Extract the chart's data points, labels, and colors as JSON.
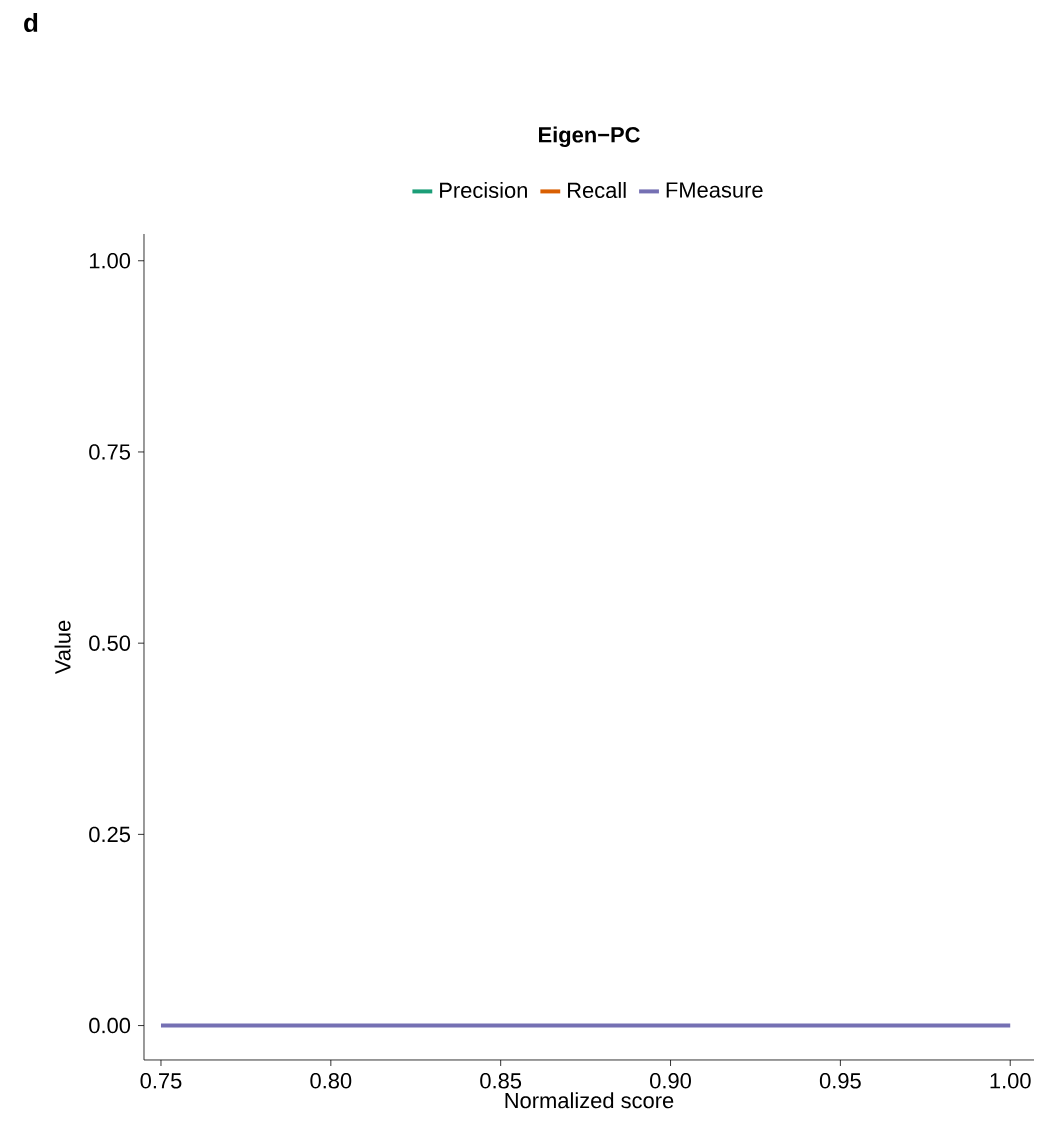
{
  "chart_data": {
    "type": "line",
    "title": "Eigen−PC",
    "xlabel": "Normalized score",
    "ylabel": "Value",
    "annotations": [
      "d"
    ],
    "x": [
      0.75,
      1.0
    ],
    "series": [
      {
        "name": "Precision",
        "color": "#1b9e77",
        "values": [
          null,
          null
        ]
      },
      {
        "name": "Recall",
        "color": "#d95f02",
        "values": [
          null,
          null
        ]
      },
      {
        "name": "FMeasure",
        "color": "#7570b3",
        "values": [
          0,
          0
        ]
      }
    ],
    "xlim": [
      0.745,
      1.007
    ],
    "ylim": [
      -0.045,
      1.035
    ],
    "xticks": [
      {
        "value": 0.75,
        "label": "0.75"
      },
      {
        "value": 0.8,
        "label": "0.80"
      },
      {
        "value": 0.85,
        "label": "0.85"
      },
      {
        "value": 0.9,
        "label": "0.90"
      },
      {
        "value": 0.95,
        "label": "0.95"
      },
      {
        "value": 1.0,
        "label": "1.00"
      }
    ],
    "yticks": [
      {
        "value": 0,
        "label": "0.00"
      },
      {
        "value": 0.25,
        "label": "0.25"
      },
      {
        "value": 0.5,
        "label": "0.50"
      },
      {
        "value": 0.75,
        "label": "0.75"
      },
      {
        "value": 1.0,
        "label": "1.00"
      }
    ],
    "grid": false,
    "legend": "top",
    "marker": "none",
    "line_style": "solid"
  }
}
